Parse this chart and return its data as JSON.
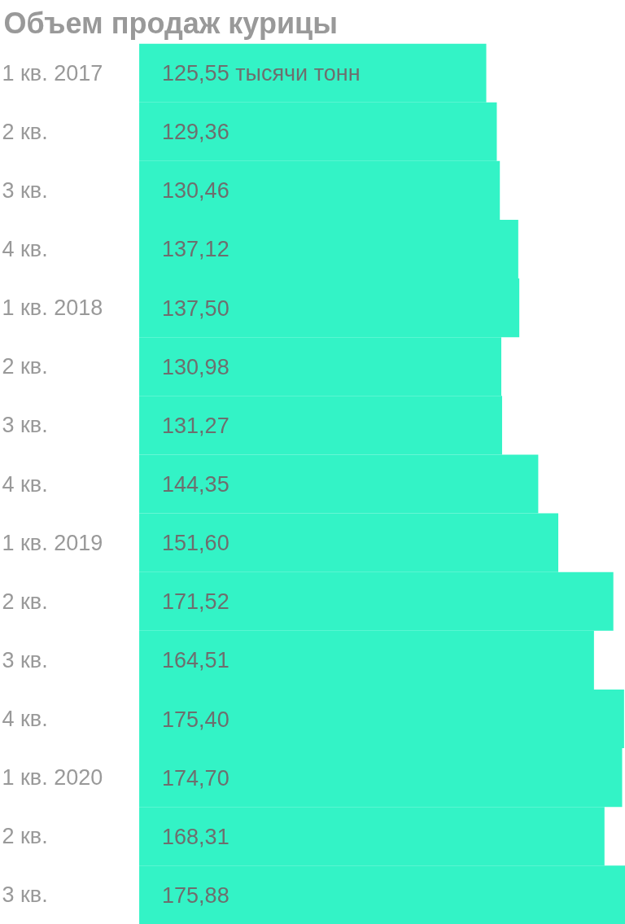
{
  "chart_data": {
    "type": "bar",
    "orientation": "horizontal",
    "title": "Объем продаж курицы",
    "categories": [
      "1 кв. 2017",
      "2 кв.",
      "3 кв.",
      "4 кв.",
      "1 кв. 2018",
      "2 кв.",
      "3 кв.",
      "4 кв.",
      "1 кв. 2019",
      "2 кв.",
      "3 кв.",
      "4 кв.",
      "1 кв. 2020",
      "2 кв.",
      "3 кв."
    ],
    "values": [
      125.55,
      129.36,
      130.46,
      137.12,
      137.5,
      130.98,
      131.27,
      144.35,
      151.6,
      171.52,
      164.51,
      175.4,
      174.7,
      168.31,
      175.88
    ],
    "value_labels": [
      "125,55 тысячи тонн",
      "129,36",
      "130,46",
      "137,12",
      "137,50",
      "130,98",
      "131,27",
      "144,35",
      "151,60",
      "171,52",
      "164,51",
      "175,40",
      "174,70",
      "168,31",
      "175,88"
    ],
    "color": "#33f3c6",
    "tick_labels": "y",
    "grid": false
  }
}
